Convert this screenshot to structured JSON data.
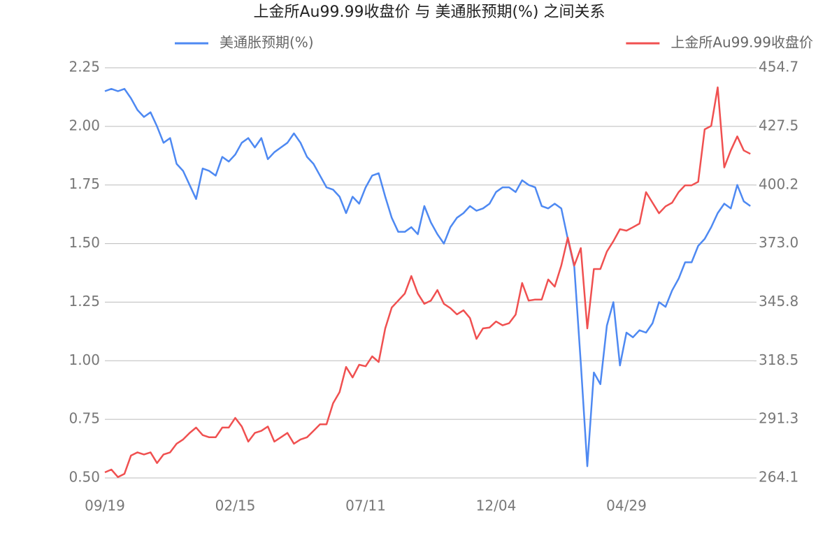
{
  "chart_data": {
    "type": "line",
    "title": "上金所Au99.99收盘价 与 美通胀预期(%) 之间关系",
    "categories": [
      "09/19",
      null,
      null,
      null,
      null,
      null,
      null,
      null,
      null,
      null,
      null,
      null,
      null,
      null,
      null,
      null,
      null,
      null,
      null,
      null,
      "02/15",
      null,
      null,
      null,
      null,
      null,
      null,
      null,
      null,
      null,
      null,
      null,
      null,
      null,
      null,
      null,
      null,
      null,
      null,
      null,
      "07/11",
      null,
      null,
      null,
      null,
      null,
      null,
      null,
      null,
      null,
      null,
      null,
      null,
      null,
      null,
      null,
      null,
      null,
      null,
      null,
      "12/04",
      null,
      null,
      null,
      null,
      null,
      null,
      null,
      null,
      null,
      null,
      null,
      null,
      null,
      null,
      null,
      null,
      null,
      null,
      null,
      "04/29",
      null,
      null,
      null,
      null,
      null,
      null,
      null,
      null,
      null,
      null,
      null,
      null,
      null,
      null,
      null,
      null,
      null,
      null,
      null
    ],
    "series": [
      {
        "name": "美通胀预期(%)",
        "color": "#4e89f2",
        "axis": "y",
        "values": [
          2.15,
          2.16,
          2.15,
          2.16,
          2.12,
          2.07,
          2.04,
          2.06,
          2.0,
          1.93,
          1.95,
          1.84,
          1.81,
          1.75,
          1.69,
          1.82,
          1.81,
          1.79,
          1.87,
          1.85,
          1.88,
          1.93,
          1.95,
          1.91,
          1.95,
          1.86,
          1.89,
          1.91,
          1.93,
          1.97,
          1.93,
          1.87,
          1.84,
          1.79,
          1.74,
          1.73,
          1.7,
          1.63,
          1.7,
          1.67,
          1.74,
          1.79,
          1.8,
          1.7,
          1.61,
          1.55,
          1.55,
          1.57,
          1.54,
          1.66,
          1.59,
          1.54,
          1.5,
          1.57,
          1.61,
          1.63,
          1.66,
          1.64,
          1.65,
          1.67,
          1.72,
          1.74,
          1.74,
          1.72,
          1.77,
          1.75,
          1.74,
          1.66,
          1.65,
          1.67,
          1.65,
          1.52,
          1.4,
          0.99,
          0.55,
          0.95,
          0.9,
          1.15,
          1.25,
          0.98,
          1.12,
          1.1,
          1.13,
          1.12,
          1.16,
          1.25,
          1.23,
          1.3,
          1.35,
          1.42,
          1.42,
          1.49,
          1.52,
          1.57,
          1.63,
          1.67,
          1.65,
          1.75,
          1.68,
          1.66
        ]
      },
      {
        "name": "上金所Au99.99收盘价",
        "color": "#f05050",
        "axis": "y2",
        "values": [
          266.7,
          268,
          264.5,
          266,
          274.5,
          276,
          275,
          276,
          271,
          275,
          276,
          280,
          282,
          285,
          287.5,
          284,
          283,
          283,
          287.5,
          287.5,
          292,
          288,
          281,
          285,
          286,
          288,
          281,
          283,
          285,
          280,
          282,
          283,
          286,
          289,
          289,
          298.8,
          304,
          315.7,
          310.8,
          316.7,
          316,
          320.6,
          318,
          333.6,
          343.3,
          346.5,
          349.8,
          357.9,
          349.8,
          345,
          346.5,
          351.4,
          345,
          343,
          340.1,
          342,
          338.4,
          328.7,
          333.6,
          334,
          336.8,
          335,
          336,
          340,
          354.7,
          346.5,
          347,
          347,
          356.3,
          353,
          362.8,
          375.8,
          362.8,
          370.9,
          333.6,
          361.2,
          361.2,
          369.3,
          374.1,
          379.7,
          379,
          380.6,
          382.3,
          396.9,
          392,
          387.1,
          390.3,
          392,
          396.9,
          400.1,
          400.1,
          401.7,
          426.1,
          427.7,
          445.6,
          408.4,
          416.3,
          422.8,
          416.3,
          414.7
        ]
      }
    ],
    "ylim": [
      0.5,
      2.25
    ],
    "yticks": [
      {
        "value": 0.5,
        "label": "0.50"
      },
      {
        "value": 0.75,
        "label": "0.75"
      },
      {
        "value": 1,
        "label": "1.00"
      },
      {
        "value": 1.25,
        "label": "1.25"
      },
      {
        "value": 1.5,
        "label": "1.50"
      },
      {
        "value": 1.75,
        "label": "1.75"
      },
      {
        "value": 2,
        "label": "2.00"
      },
      {
        "value": 2.25,
        "label": "2.25"
      }
    ],
    "y2lim": [
      264.1,
      454.7
    ],
    "y2ticks": [
      264.1,
      291.3,
      318.5,
      345.8,
      {
        "value": 373,
        "label": "373.0"
      },
      400.2,
      427.5,
      454.7
    ],
    "grid": true
  }
}
